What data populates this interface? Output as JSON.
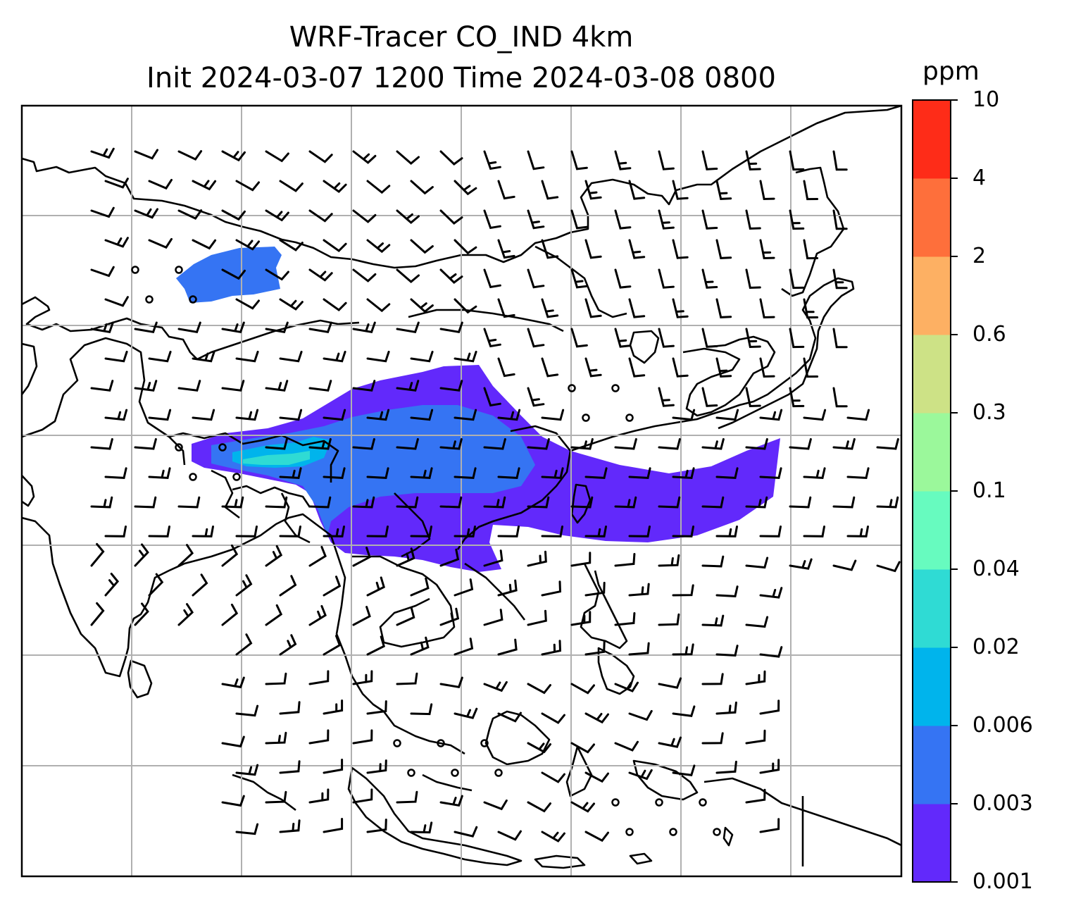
{
  "title": {
    "line1": "WRF-Tracer CO_IND 4km",
    "line2": "Init 2024-03-07 1200 Time 2024-03-08 0800"
  },
  "colorbar": {
    "unit": "ppm",
    "levels": [
      "0.001",
      "0.003",
      "0.006",
      "0.02",
      "0.04",
      "0.1",
      "0.3",
      "0.6",
      "2",
      "4",
      "10"
    ],
    "colors": [
      "#6229fb",
      "#3574f3",
      "#00b4ec",
      "#2fdbd4",
      "#67fbbf",
      "#9bf89b",
      "#cde286",
      "#fdb063",
      "#fe6f3b",
      "#fe2c18"
    ]
  },
  "map": {
    "gridlines": true,
    "plume_colors": {
      "outer": "#6229fb",
      "inner": "#3574f3",
      "core": "#00b4ec",
      "hot": "#2fdbd4"
    },
    "wind_barbs": "black"
  }
}
